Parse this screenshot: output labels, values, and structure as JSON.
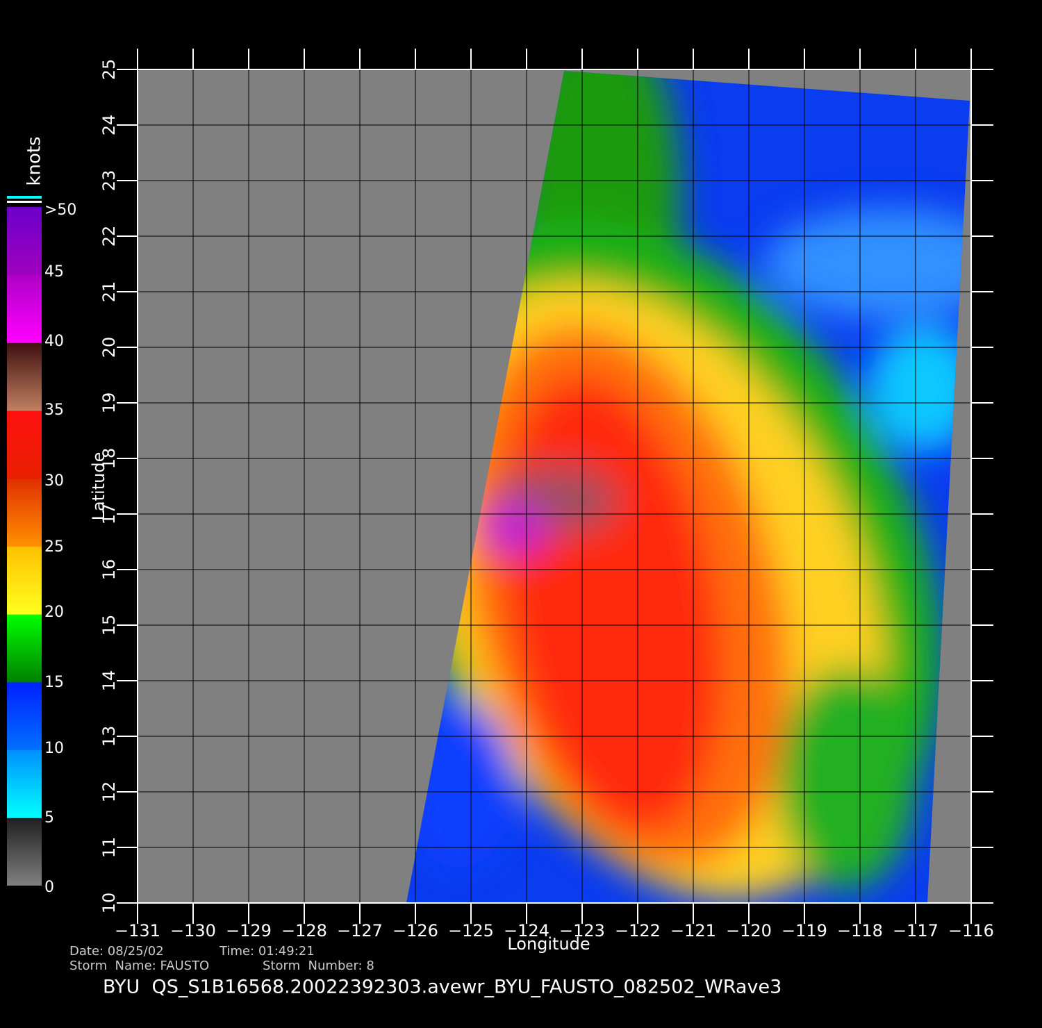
{
  "colorbar": {
    "unit": "knots",
    "labels": [
      ">50",
      "45",
      "40",
      "35",
      "30",
      "25",
      "20",
      "15",
      "10",
      "5",
      "0"
    ]
  },
  "axes": {
    "x_label": "Longitude",
    "y_label": "Latitude",
    "x_tick_labels": [
      "−131",
      "−130",
      "−129",
      "−128",
      "−127",
      "−126",
      "−125",
      "−124",
      "−123",
      "−122",
      "−121",
      "−120",
      "−119",
      "−118",
      "−117",
      "−116"
    ],
    "y_tick_labels": [
      "10",
      "11",
      "12",
      "13",
      "14",
      "15",
      "16",
      "17",
      "18",
      "19",
      "20",
      "21",
      "22",
      "23",
      "24",
      "25"
    ]
  },
  "info": {
    "date": "Date: 08/25/02",
    "time": "Time: 01:49:21",
    "storm_name": "Storm  Name: FAUSTO",
    "storm_number": "Storm  Number: 8"
  },
  "footer": "BYU  QS_S1B16568.20022392303.avewr_BYU_FAUSTO_082502_WRave3"
}
